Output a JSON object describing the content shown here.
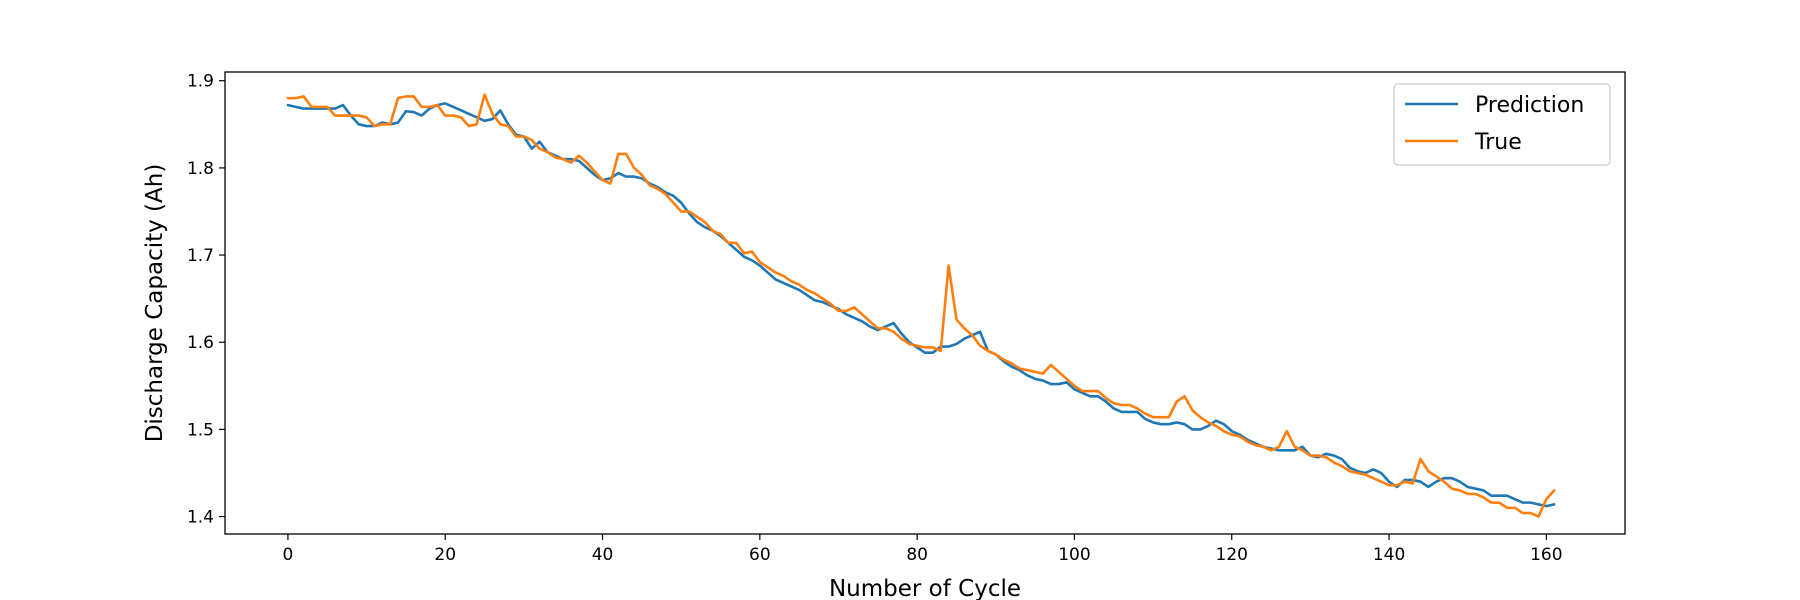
{
  "chart_data": {
    "type": "line",
    "title": "",
    "xlabel": "Number of Cycle",
    "ylabel": "Discharge Capacity (Ah)",
    "xlim": [
      -8,
      170
    ],
    "ylim": [
      1.38,
      1.91
    ],
    "xticks": [
      0,
      20,
      40,
      60,
      80,
      100,
      120,
      140,
      160
    ],
    "yticks": [
      1.4,
      1.5,
      1.6,
      1.7,
      1.8,
      1.9
    ],
    "xtick_labels": [
      "0",
      "20",
      "40",
      "60",
      "80",
      "100",
      "120",
      "140",
      "160"
    ],
    "ytick_labels": [
      "1.4",
      "1.5",
      "1.6",
      "1.7",
      "1.8",
      "1.9"
    ],
    "grid": false,
    "legend_position": "top-right",
    "series": [
      {
        "name": "Prediction",
        "color": "#1f77b4",
        "values": [
          1.872,
          1.87,
          1.868,
          1.868,
          1.868,
          1.868,
          1.868,
          1.872,
          1.86,
          1.85,
          1.848,
          1.848,
          1.852,
          1.85,
          1.852,
          1.865,
          1.864,
          1.86,
          1.868,
          1.872,
          1.874,
          1.87,
          1.866,
          1.862,
          1.858,
          1.854,
          1.856,
          1.866,
          1.85,
          1.838,
          1.836,
          1.822,
          1.83,
          1.818,
          1.814,
          1.81,
          1.81,
          1.808,
          1.8,
          1.792,
          1.786,
          1.788,
          1.794,
          1.79,
          1.79,
          1.788,
          1.782,
          1.778,
          1.772,
          1.768,
          1.76,
          1.748,
          1.738,
          1.732,
          1.728,
          1.722,
          1.714,
          1.706,
          1.698,
          1.694,
          1.688,
          1.68,
          1.672,
          1.668,
          1.664,
          1.66,
          1.654,
          1.648,
          1.646,
          1.642,
          1.638,
          1.632,
          1.628,
          1.624,
          1.618,
          1.614,
          1.618,
          1.622,
          1.61,
          1.6,
          1.594,
          1.588,
          1.588,
          1.595,
          1.595,
          1.598,
          1.604,
          1.608,
          1.612,
          1.59,
          1.586,
          1.578,
          1.572,
          1.568,
          1.562,
          1.558,
          1.556,
          1.552,
          1.552,
          1.554,
          1.546,
          1.542,
          1.538,
          1.538,
          1.532,
          1.524,
          1.52,
          1.52,
          1.52,
          1.512,
          1.508,
          1.506,
          1.506,
          1.508,
          1.506,
          1.5,
          1.5,
          1.504,
          1.51,
          1.506,
          1.498,
          1.494,
          1.488,
          1.484,
          1.48,
          1.478,
          1.476,
          1.476,
          1.476,
          1.48,
          1.47,
          1.468,
          1.472,
          1.47,
          1.466,
          1.456,
          1.452,
          1.45,
          1.454,
          1.45,
          1.44,
          1.434,
          1.442,
          1.442,
          1.44,
          1.434,
          1.44,
          1.444,
          1.444,
          1.44,
          1.434,
          1.432,
          1.43,
          1.424,
          1.424,
          1.424,
          1.42,
          1.416,
          1.416,
          1.414,
          1.412,
          1.414
        ]
      },
      {
        "name": "True",
        "color": "#ff7f0e",
        "values": [
          1.88,
          1.88,
          1.882,
          1.87,
          1.87,
          1.87,
          1.86,
          1.86,
          1.86,
          1.86,
          1.858,
          1.848,
          1.85,
          1.85,
          1.88,
          1.882,
          1.882,
          1.87,
          1.87,
          1.872,
          1.86,
          1.86,
          1.858,
          1.848,
          1.85,
          1.884,
          1.862,
          1.85,
          1.848,
          1.836,
          1.836,
          1.832,
          1.822,
          1.818,
          1.812,
          1.81,
          1.806,
          1.814,
          1.806,
          1.796,
          1.786,
          1.782,
          1.816,
          1.816,
          1.8,
          1.792,
          1.78,
          1.776,
          1.77,
          1.76,
          1.75,
          1.75,
          1.744,
          1.738,
          1.728,
          1.724,
          1.714,
          1.714,
          1.702,
          1.704,
          1.692,
          1.686,
          1.68,
          1.676,
          1.67,
          1.666,
          1.66,
          1.656,
          1.65,
          1.644,
          1.636,
          1.636,
          1.64,
          1.632,
          1.624,
          1.616,
          1.616,
          1.612,
          1.604,
          1.598,
          1.596,
          1.594,
          1.594,
          1.59,
          1.688,
          1.626,
          1.616,
          1.608,
          1.596,
          1.59,
          1.586,
          1.58,
          1.576,
          1.57,
          1.568,
          1.566,
          1.564,
          1.574,
          1.566,
          1.558,
          1.55,
          1.544,
          1.544,
          1.544,
          1.536,
          1.53,
          1.528,
          1.528,
          1.524,
          1.518,
          1.514,
          1.514,
          1.514,
          1.532,
          1.538,
          1.522,
          1.514,
          1.508,
          1.504,
          1.498,
          1.494,
          1.492,
          1.486,
          1.482,
          1.48,
          1.476,
          1.48,
          1.498,
          1.48,
          1.476,
          1.47,
          1.47,
          1.468,
          1.462,
          1.458,
          1.452,
          1.45,
          1.448,
          1.444,
          1.44,
          1.436,
          1.436,
          1.44,
          1.438,
          1.466,
          1.452,
          1.446,
          1.44,
          1.432,
          1.43,
          1.426,
          1.426,
          1.422,
          1.416,
          1.416,
          1.41,
          1.41,
          1.404,
          1.404,
          1.4,
          1.42,
          1.43
        ]
      }
    ]
  }
}
